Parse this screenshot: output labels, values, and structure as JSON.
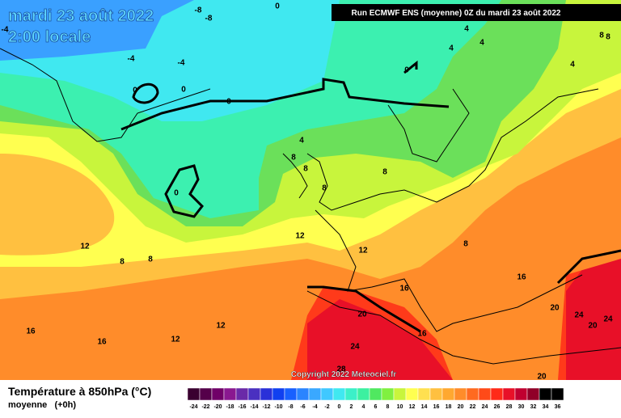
{
  "header": {
    "date": "mardi 23 août 2022",
    "time": "2:00 locale",
    "run": "Run ECMWF ENS (moyenne) 0Z du mardi 23 août 2022",
    "copyright": "Copyright 2022 Meteociel.fr"
  },
  "legend": {
    "title": "Température à 850hPa (°C)",
    "subtitle": "moyenne   (+0h)",
    "scale": [
      {
        "value": -24,
        "color": "#3a0030"
      },
      {
        "value": -22,
        "color": "#55004a"
      },
      {
        "value": -20,
        "color": "#700068"
      },
      {
        "value": -18,
        "color": "#8a1890"
      },
      {
        "value": -16,
        "color": "#6a2aa8"
      },
      {
        "value": -14,
        "color": "#4a30c0"
      },
      {
        "value": -12,
        "color": "#2a30d8"
      },
      {
        "value": -10,
        "color": "#1040f0"
      },
      {
        "value": -8,
        "color": "#1860ff"
      },
      {
        "value": -6,
        "color": "#2a84ff"
      },
      {
        "value": -4,
        "color": "#3aa8ff"
      },
      {
        "value": -2,
        "color": "#40c8ff"
      },
      {
        "value": 0,
        "color": "#40e8f0"
      },
      {
        "value": 2,
        "color": "#3cf0c8"
      },
      {
        "value": 4,
        "color": "#3cf0a0"
      },
      {
        "value": 6,
        "color": "#50e860"
      },
      {
        "value": 8,
        "color": "#80f040"
      },
      {
        "value": 10,
        "color": "#c8f53c"
      },
      {
        "value": 12,
        "color": "#ffff50"
      },
      {
        "value": 14,
        "color": "#ffe050"
      },
      {
        "value": 16,
        "color": "#ffc040"
      },
      {
        "value": 18,
        "color": "#ffa830"
      },
      {
        "value": 20,
        "color": "#ff8c2a"
      },
      {
        "value": 22,
        "color": "#ff6a20"
      },
      {
        "value": 24,
        "color": "#ff4a18"
      },
      {
        "value": 26,
        "color": "#ff2a18"
      },
      {
        "value": 28,
        "color": "#e81028"
      },
      {
        "value": 30,
        "color": "#c00030"
      },
      {
        "value": 32,
        "color": "#900028"
      },
      {
        "value": 34,
        "color": "#000000"
      },
      {
        "value": 36,
        "color": "#000000"
      }
    ]
  },
  "contour_labels": [
    -8,
    -8,
    0,
    -4,
    -4,
    -4,
    0,
    0,
    0,
    0,
    4,
    4,
    4,
    0,
    4,
    8,
    8,
    4,
    8,
    8,
    8,
    8,
    12,
    12,
    8,
    8,
    8,
    12,
    16,
    16,
    20,
    16,
    20,
    24,
    24,
    20,
    12,
    12,
    16,
    16,
    24,
    28,
    20
  ]
}
